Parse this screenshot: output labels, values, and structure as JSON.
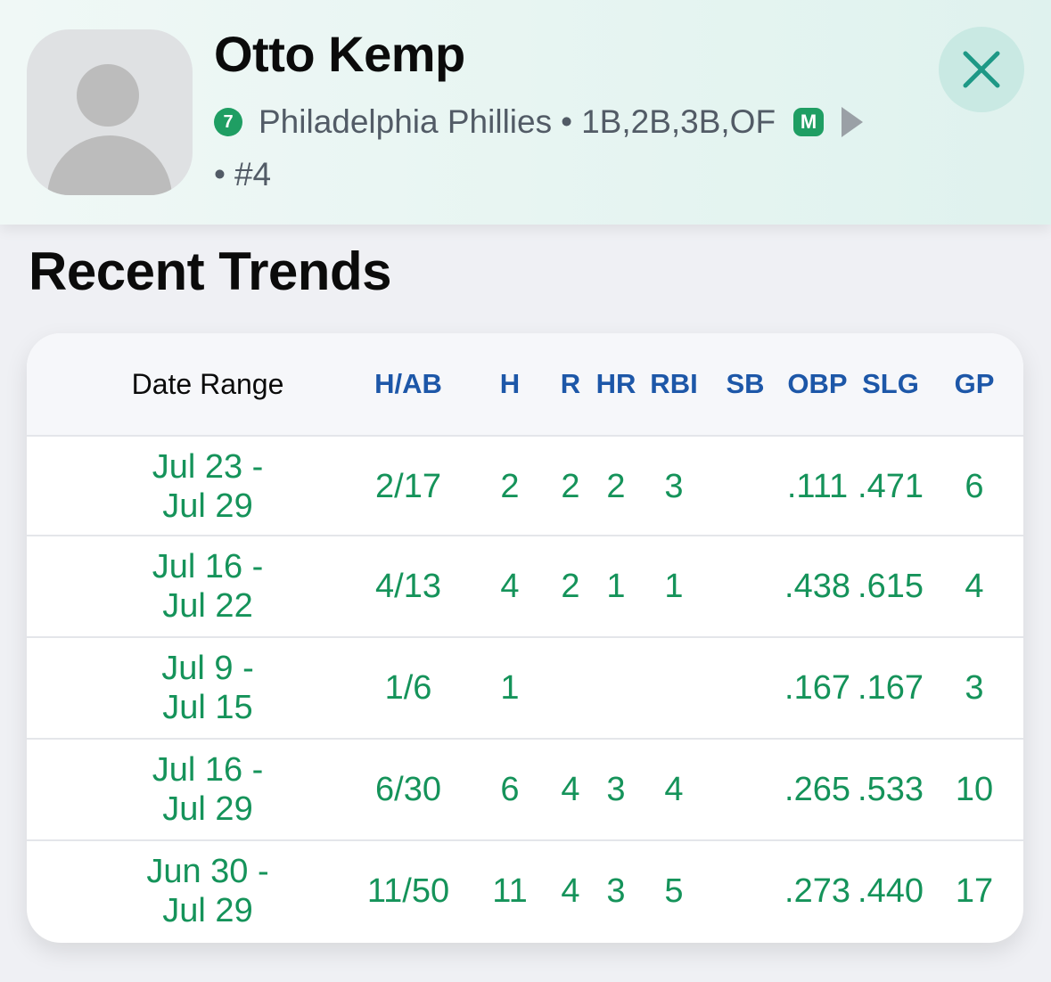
{
  "player": {
    "name": "Otto Kemp",
    "status_number": "7",
    "team": "Philadelphia Phillies",
    "separator": "•",
    "positions": "1B,2B,3B,OF",
    "badge": "M",
    "jersey": "#4"
  },
  "icons": {
    "avatar": "person-placeholder-icon",
    "close": "close-icon",
    "play": "play-triangle-icon"
  },
  "colors": {
    "accent_green": "#1f9e63",
    "stat_green": "#15935a",
    "header_blue": "#1d57a8"
  },
  "section": {
    "title": "Recent Trends"
  },
  "table": {
    "headers": {
      "date": "Date Range",
      "h_ab": "H/AB",
      "h": "H",
      "r": "R",
      "hr": "HR",
      "rbi": "RBI",
      "sb": "SB",
      "obp": "OBP",
      "slg": "SLG",
      "gp": "GP"
    },
    "rows": [
      {
        "date_start": "Jul 23 -",
        "date_end": "Jul 29",
        "h_ab": "2/17",
        "h": "2",
        "r": "2",
        "hr": "2",
        "rbi": "3",
        "sb": "",
        "obp": ".111",
        "slg": ".471",
        "gp": "6"
      },
      {
        "date_start": "Jul 16 -",
        "date_end": "Jul 22",
        "h_ab": "4/13",
        "h": "4",
        "r": "2",
        "hr": "1",
        "rbi": "1",
        "sb": "",
        "obp": ".438",
        "slg": ".615",
        "gp": "4"
      },
      {
        "date_start": "Jul 9 -",
        "date_end": "Jul 15",
        "h_ab": "1/6",
        "h": "1",
        "r": "",
        "hr": "",
        "rbi": "",
        "sb": "",
        "obp": ".167",
        "slg": ".167",
        "gp": "3"
      },
      {
        "date_start": "Jul 16 -",
        "date_end": "Jul 29",
        "h_ab": "6/30",
        "h": "6",
        "r": "4",
        "hr": "3",
        "rbi": "4",
        "sb": "",
        "obp": ".265",
        "slg": ".533",
        "gp": "10"
      },
      {
        "date_start": "Jun 30 -",
        "date_end": "Jul 29",
        "h_ab": "11/50",
        "h": "11",
        "r": "4",
        "hr": "3",
        "rbi": "5",
        "sb": "",
        "obp": ".273",
        "slg": ".440",
        "gp": "17"
      }
    ]
  }
}
